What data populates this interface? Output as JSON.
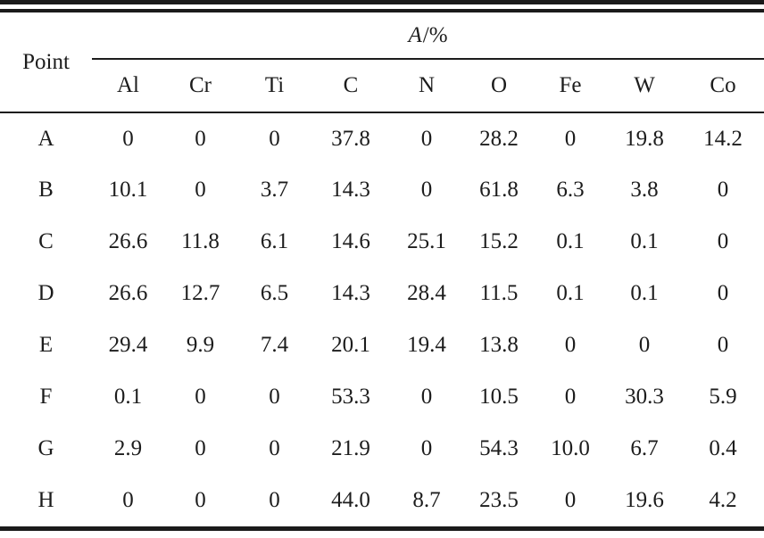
{
  "table": {
    "corner_header": "Point",
    "group_header": {
      "italic": "A",
      "rest": "/%"
    },
    "element_columns": [
      "Al",
      "Cr",
      "Ti",
      "C",
      "N",
      "O",
      "Fe",
      "W",
      "Co"
    ],
    "rows": [
      {
        "point": "A",
        "values": [
          "0",
          "0",
          "0",
          "37.8",
          "0",
          "28.2",
          "0",
          "19.8",
          "14.2"
        ]
      },
      {
        "point": "B",
        "values": [
          "10.1",
          "0",
          "3.7",
          "14.3",
          "0",
          "61.8",
          "6.3",
          "3.8",
          "0"
        ]
      },
      {
        "point": "C",
        "values": [
          "26.6",
          "11.8",
          "6.1",
          "14.6",
          "25.1",
          "15.2",
          "0.1",
          "0.1",
          "0"
        ]
      },
      {
        "point": "D",
        "values": [
          "26.6",
          "12.7",
          "6.5",
          "14.3",
          "28.4",
          "11.5",
          "0.1",
          "0.1",
          "0"
        ]
      },
      {
        "point": "E",
        "values": [
          "29.4",
          "9.9",
          "7.4",
          "20.1",
          "19.4",
          "13.8",
          "0",
          "0",
          "0"
        ]
      },
      {
        "point": "F",
        "values": [
          "0.1",
          "0",
          "0",
          "53.3",
          "0",
          "10.5",
          "0",
          "30.3",
          "5.9"
        ]
      },
      {
        "point": "G",
        "values": [
          "2.9",
          "0",
          "0",
          "21.9",
          "0",
          "54.3",
          "10.0",
          "6.7",
          "0.4"
        ]
      },
      {
        "point": "H",
        "values": [
          "0",
          "0",
          "0",
          "44.0",
          "8.7",
          "23.5",
          "0",
          "19.6",
          "4.2"
        ]
      }
    ]
  },
  "colors": {
    "text": "#1c1c1c",
    "rule": "#1a1a1a",
    "background": "#ffffff"
  }
}
